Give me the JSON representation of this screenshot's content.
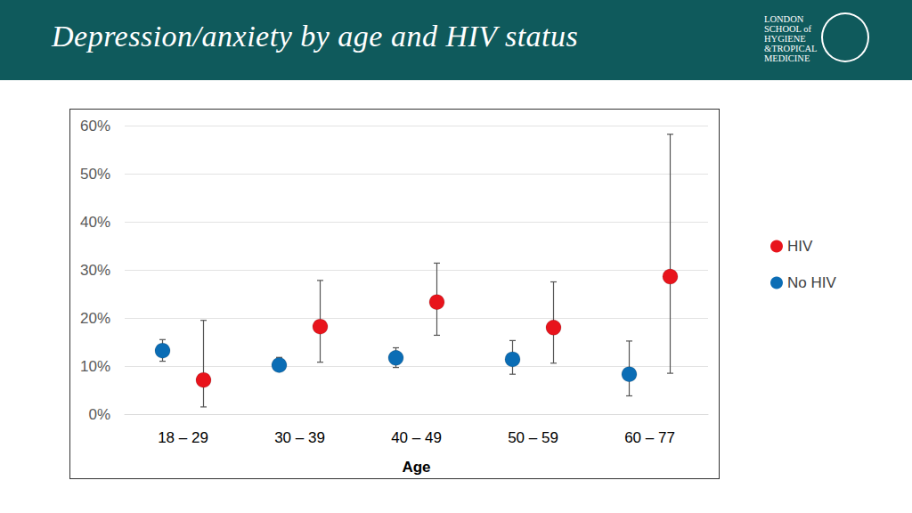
{
  "chart_data": {
    "type": "scatter",
    "title": "Depression/anxiety by age and HIV status",
    "logo_text": [
      "LONDON",
      "SCHOOL of",
      "HYGIENE",
      "&TROPICAL",
      "MEDICINE"
    ],
    "x_label": "Age",
    "categories": [
      "18 – 29",
      "30 – 39",
      "40 – 49",
      "50 – 59",
      "60 – 77"
    ],
    "series": [
      {
        "name": "HIV",
        "color": "#e8141c",
        "marker": "circle",
        "values": [
          7.1,
          18.2,
          23.3,
          18.0,
          28.6
        ],
        "error_lower": [
          1.5,
          10.8,
          16.4,
          10.6,
          8.5
        ],
        "error_upper": [
          19.5,
          27.8,
          31.4,
          27.5,
          58.2
        ]
      },
      {
        "name": "No HIV",
        "color": "#0b6db5",
        "marker": "circle",
        "values": [
          13.2,
          10.2,
          11.7,
          11.4,
          8.3
        ],
        "error_lower": [
          11.0,
          9.5,
          9.7,
          8.3,
          3.8
        ],
        "error_upper": [
          15.5,
          11.8,
          13.8,
          15.3,
          15.2
        ]
      }
    ],
    "ylim": [
      0,
      60
    ],
    "yticks": [
      {
        "value": 0,
        "label": "0%"
      },
      {
        "value": 10,
        "label": "10%"
      },
      {
        "value": 20,
        "label": "20%"
      },
      {
        "value": 30,
        "label": "30%"
      },
      {
        "value": 40,
        "label": "40%"
      },
      {
        "value": 50,
        "label": "50%"
      },
      {
        "value": 60,
        "label": "60%"
      }
    ],
    "grid": true,
    "legend": "right"
  }
}
